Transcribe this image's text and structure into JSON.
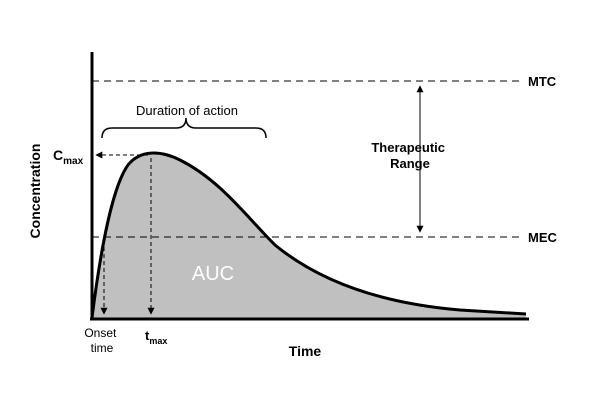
{
  "diagram": {
    "lines": {
      "upper": "MTC",
      "lower": "MEC"
    },
    "range_label": [
      "Therapeutic",
      "Range"
    ],
    "duration_label": "Duration of action",
    "peak_label": {
      "main": "C",
      "sub": "max"
    },
    "area_label": "AUC",
    "onset_label": [
      "Onset",
      "time"
    ],
    "tmax_label": {
      "main": "t",
      "sub": "max"
    },
    "x_axis_label": "Time",
    "y_axis_label": "Concentration",
    "colors": {
      "curve_fill": "#c0c0c0",
      "stroke": "#000000",
      "background": "#ffffff"
    }
  }
}
